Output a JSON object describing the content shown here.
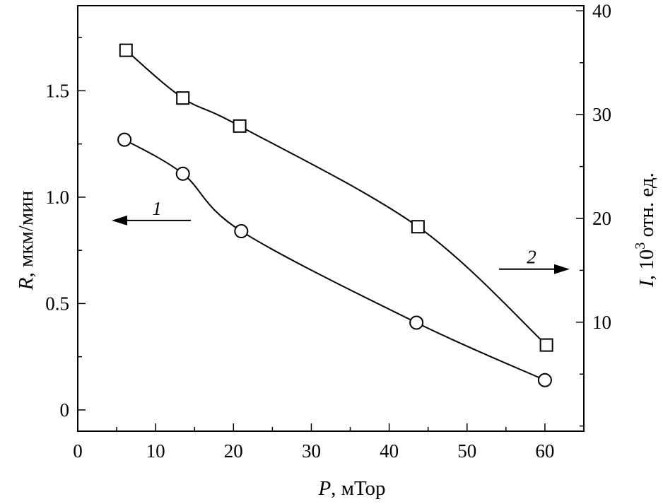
{
  "chart_data": {
    "type": "line",
    "x_axis": {
      "label_var": "P",
      "label_unit": ", мТор",
      "range": [
        0,
        65
      ],
      "ticks": [
        0,
        10,
        20,
        30,
        40,
        50,
        60
      ],
      "tick_labels": [
        "0",
        "10",
        "20",
        "30",
        "40",
        "50",
        "60"
      ],
      "minor_step": 5
    },
    "y_left": {
      "label_var": "R",
      "label_unit": ", мкм/мин",
      "range": [
        -0.1,
        1.9
      ],
      "ticks": [
        0,
        0.5,
        1.0,
        1.5
      ],
      "tick_labels": [
        "0",
        "0.5",
        "1.0",
        "1.5"
      ],
      "minor_step": 0.25
    },
    "y_right": {
      "label_var": "I",
      "label_unit_a": ", 10",
      "label_sup": "3",
      "label_unit_b": " отн. ед.",
      "range": [
        -0.5,
        40.5
      ],
      "ticks": [
        10,
        20,
        30,
        40
      ],
      "tick_labels": [
        "10",
        "20",
        "30",
        "40"
      ],
      "minor_step": 5
    },
    "series": [
      {
        "label": "1",
        "axis": "left",
        "marker": "circle",
        "x": [
          6,
          13.5,
          21,
          43.5,
          60
        ],
        "y": [
          1.27,
          1.11,
          0.84,
          0.41,
          0.14
        ]
      },
      {
        "label": "2",
        "axis": "right",
        "marker": "square",
        "x": [
          6.2,
          13.5,
          20.8,
          43.7,
          60.2
        ],
        "y": [
          36.2,
          31.6,
          28.9,
          19.2,
          7.8
        ]
      }
    ],
    "annotations": [
      {
        "text": "1",
        "series": 0,
        "arrow_direction": "left"
      },
      {
        "text": "2",
        "series": 1,
        "arrow_direction": "right"
      }
    ],
    "grid": false,
    "legend": "none"
  }
}
